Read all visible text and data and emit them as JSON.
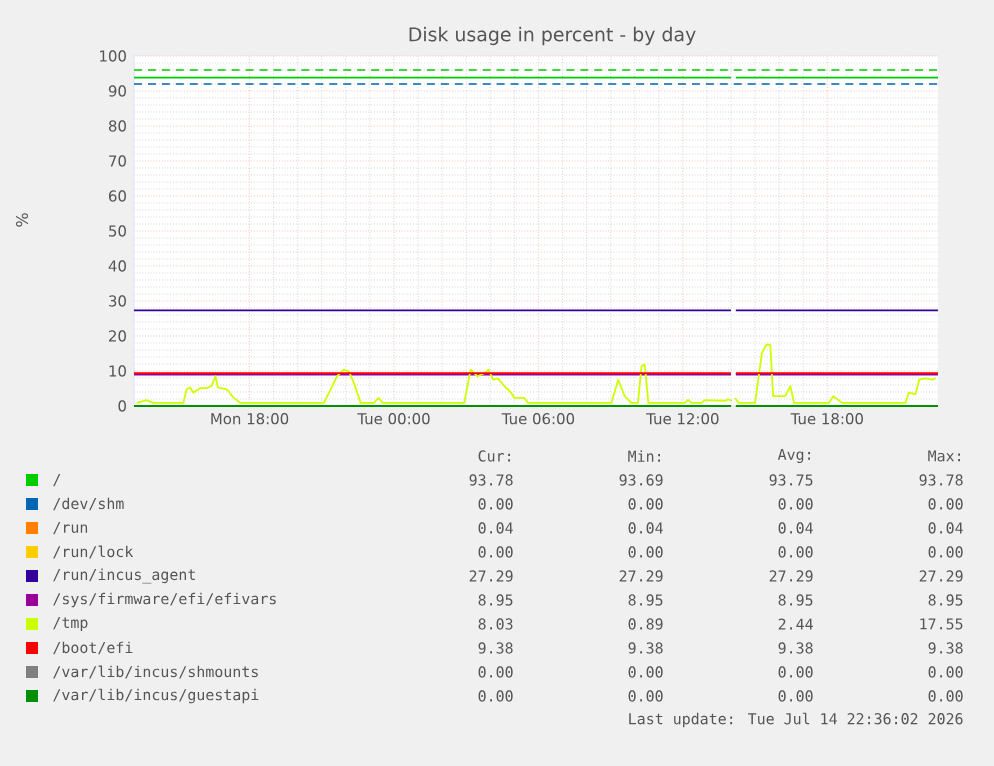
{
  "chart_data": {
    "type": "line",
    "title": "Disk usage in percent - by day",
    "ylabel": "%",
    "xlim": [
      "2026-07-13T13:12",
      "2026-07-14T22:36"
    ],
    "ylim": [
      0,
      100
    ],
    "xticks": [
      {
        "value": "2026-07-13T18:00",
        "label": "Mon 18:00"
      },
      {
        "value": "2026-07-14T00:00",
        "label": "Tue 00:00"
      },
      {
        "value": "2026-07-14T06:00",
        "label": "Tue 06:00"
      },
      {
        "value": "2026-07-14T12:00",
        "label": "Tue 12:00"
      },
      {
        "value": "2026-07-14T18:00",
        "label": "Tue 18:00"
      }
    ],
    "yticks": [
      0,
      10,
      20,
      30,
      40,
      50,
      60,
      70,
      80,
      90,
      100
    ],
    "grid": true,
    "legend": "bottom",
    "line_style": "solid",
    "x": [
      "2026-07-13T13:12",
      "2026-07-14T14:00",
      "2026-07-14T14:06",
      "2026-07-14T14:12",
      "2026-07-14T22:36"
    ],
    "ref_lines": [
      {
        "axis": "y",
        "value": 96,
        "color": "#00cc00",
        "line_style": "dashed"
      },
      {
        "axis": "y",
        "value": 92,
        "color": "#0066b3",
        "line_style": "dashed"
      }
    ],
    "series": [
      {
        "name": "/",
        "color": "#00cc00",
        "values": [
          93.8,
          93.8,
          null,
          93.8,
          93.8
        ]
      },
      {
        "name": "/dev/shm",
        "color": "#0066b3",
        "values": [
          null,
          null,
          null,
          null,
          null
        ]
      },
      {
        "name": "/run",
        "color": "#ff8000",
        "values": [
          null,
          null,
          null,
          null,
          null
        ]
      },
      {
        "name": "/run/lock",
        "color": "#ffcc00",
        "values": [
          null,
          null,
          null,
          null,
          null
        ]
      },
      {
        "name": "/run/incus_agent",
        "color": "#330099",
        "values": [
          27.3,
          27.3,
          null,
          27.3,
          27.3
        ]
      },
      {
        "name": "/sys/firmware/efi/efivars",
        "color": "#990099",
        "values": [
          9.0,
          9.0,
          null,
          9.0,
          9.0
        ]
      },
      {
        "name": "/tmp",
        "color": "#ccff00",
        "x": [
          "2026-07-13T13:19",
          "2026-07-13T13:43",
          "2026-07-13T14:00",
          "2026-07-13T15:15",
          "2026-07-13T15:23",
          "2026-07-13T15:32",
          "2026-07-13T15:40",
          "2026-07-13T15:56",
          "2026-07-13T16:13",
          "2026-07-13T16:25",
          "2026-07-13T16:35",
          "2026-07-13T16:41",
          "2026-07-13T17:04",
          "2026-07-13T17:20",
          "2026-07-13T17:37",
          "2026-07-13T21:05",
          "2026-07-13T21:22",
          "2026-07-13T21:38",
          "2026-07-13T21:55",
          "2026-07-13T22:08",
          "2026-07-13T22:20",
          "2026-07-13T22:37",
          "2026-07-13T23:10",
          "2026-07-13T23:22",
          "2026-07-13T23:32",
          "2026-07-14T02:55",
          "2026-07-14T03:11",
          "2026-07-14T03:28",
          "2026-07-14T03:45",
          "2026-07-14T03:56",
          "2026-07-14T04:07",
          "2026-07-14T04:19",
          "2026-07-14T04:35",
          "2026-07-14T04:52",
          "2026-07-14T05:00",
          "2026-07-14T05:25",
          "2026-07-14T05:34",
          "2026-07-14T09:02",
          "2026-07-14T09:19",
          "2026-07-14T09:35",
          "2026-07-14T09:52",
          "2026-07-14T10:08",
          "2026-07-14T10:17",
          "2026-07-14T10:25",
          "2026-07-14T10:34",
          "2026-07-14T12:05",
          "2026-07-14T12:13",
          "2026-07-14T12:22",
          "2026-07-14T12:47",
          "2026-07-14T12:55",
          "2026-07-14T13:45",
          "2026-07-14T13:53",
          "2026-07-14T14:02",
          "2026-07-14T14:06",
          "2026-07-14T14:10",
          "2026-07-14T14:19",
          "2026-07-14T15:00",
          "2026-07-14T15:17",
          "2026-07-14T15:28",
          "2026-07-14T15:38",
          "2026-07-14T15:45",
          "2026-07-14T16:15",
          "2026-07-14T16:28",
          "2026-07-14T16:37",
          "2026-07-14T18:04",
          "2026-07-14T18:15",
          "2026-07-14T18:37",
          "2026-07-14T21:15",
          "2026-07-14T21:23",
          "2026-07-14T21:40",
          "2026-07-14T21:49",
          "2026-07-14T22:05",
          "2026-07-14T22:22",
          "2026-07-14T22:30"
        ],
        "values": [
          0.9,
          1.7,
          0.9,
          0.9,
          4.7,
          5.3,
          3.8,
          5.1,
          5.1,
          5.7,
          8.5,
          5.3,
          4.7,
          2.4,
          0.9,
          0.9,
          4.7,
          8.5,
          10.4,
          9.8,
          6.6,
          0.9,
          0.9,
          2.3,
          0.9,
          0.9,
          10.4,
          8.5,
          9.4,
          10.4,
          7.5,
          7.9,
          5.7,
          3.8,
          2.3,
          2.3,
          0.9,
          0.9,
          7.5,
          2.8,
          0.9,
          0.9,
          11.3,
          11.9,
          0.9,
          0.9,
          1.7,
          0.9,
          0.9,
          1.7,
          1.5,
          1.9,
          1.5,
          null,
          2.3,
          0.9,
          0.9,
          15.1,
          17.5,
          17.5,
          2.8,
          2.8,
          5.7,
          0.9,
          0.9,
          2.8,
          0.9,
          0.9,
          3.8,
          3.4,
          7.5,
          7.9,
          7.5,
          8.0
        ]
      },
      {
        "name": "/boot/efi",
        "color": "#ff0000",
        "values": [
          9.4,
          9.4,
          null,
          9.4,
          9.4
        ]
      },
      {
        "name": "/var/lib/incus/shmounts",
        "color": "#808080",
        "values": [
          null,
          null,
          null,
          null,
          null
        ]
      },
      {
        "name": "/var/lib/incus/guestapi",
        "color": "#008f00",
        "values": [
          0,
          0,
          null,
          0,
          0
        ]
      }
    ],
    "annotations": [
      "Cur:",
      "Min:",
      "Avg:",
      "Max:",
      "93.78",
      "93.69",
      "93.75",
      "93.78",
      "0.00",
      "0.00",
      "0.00",
      "0.00",
      "0.04",
      "0.04",
      "0.04",
      "0.04",
      "0.00",
      "0.00",
      "0.00",
      "0.00",
      "27.29",
      "27.29",
      "27.29",
      "27.29",
      "8.95",
      "8.95",
      "8.95",
      "8.95",
      "8.03",
      "0.89",
      "2.44",
      "17.55",
      "9.38",
      "9.38",
      "9.38",
      "9.38",
      "0.00",
      "0.00",
      "0.00",
      "0.00",
      "0.00",
      "0.00",
      "0.00",
      "0.00",
      "Last update: Tue Jul 14 22:36:02 2026"
    ]
  }
}
